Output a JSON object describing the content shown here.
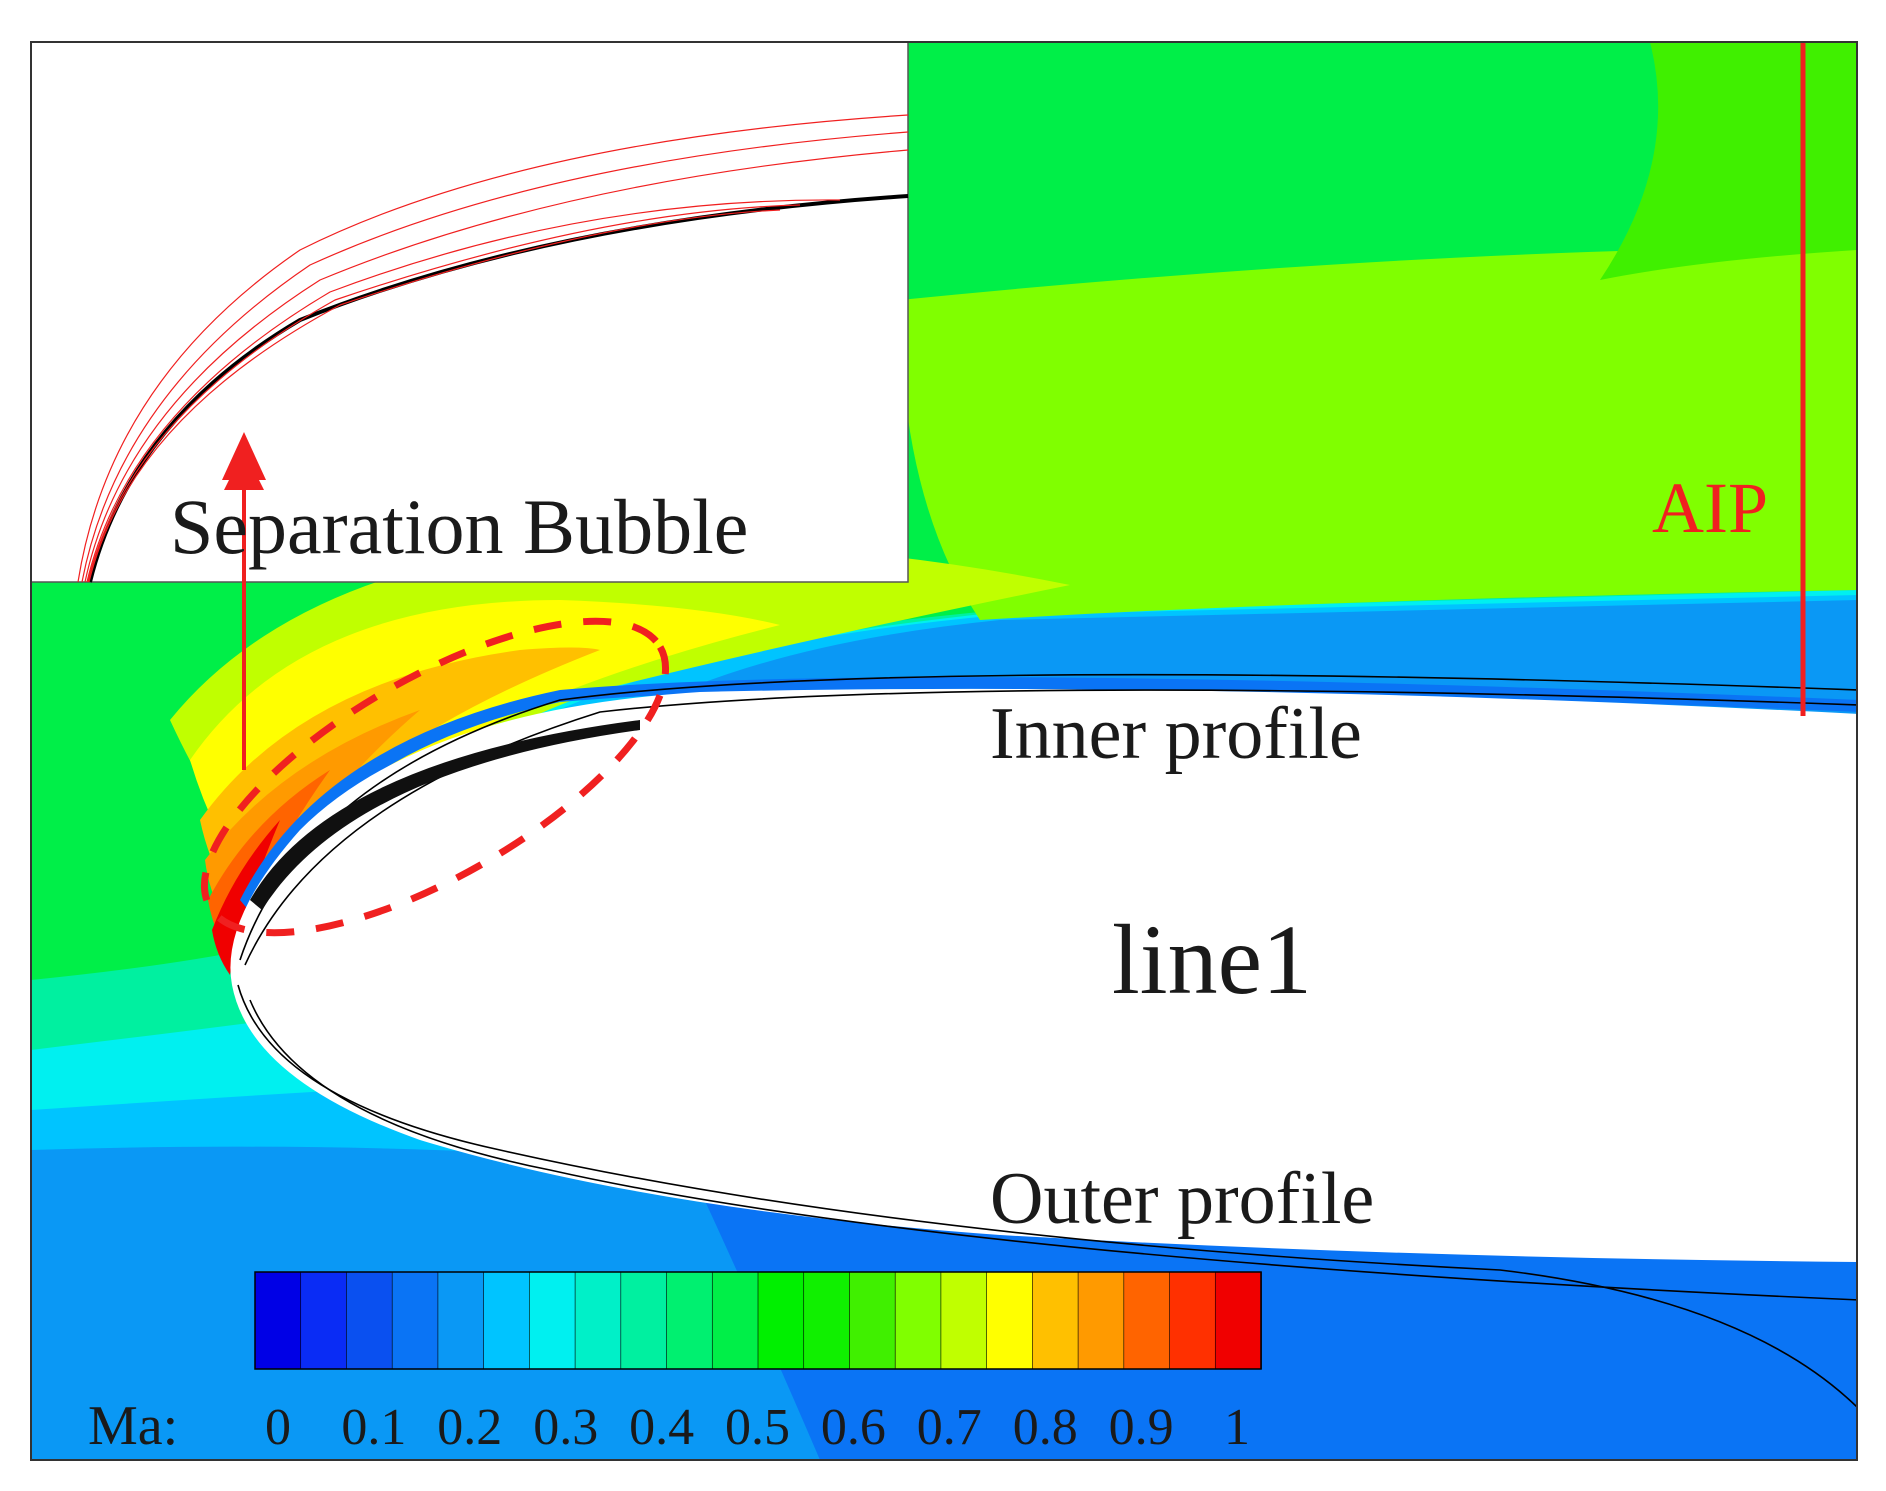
{
  "labels": {
    "separation_bubble": "Separation Bubble",
    "aip": "AIP",
    "inner_profile": "Inner profile",
    "outer_profile": "Outer profile",
    "line1": "line1"
  },
  "colorbar": {
    "title": "Ma:",
    "min": 0,
    "max": 1,
    "tick_labels": [
      "0",
      "0.1",
      "0.2",
      "0.3",
      "0.4",
      "0.5",
      "0.6",
      "0.7",
      "0.8",
      "0.9",
      "1"
    ],
    "colors": [
      "#0000e6",
      "#0a2cf5",
      "#0a50f0",
      "#0a74f5",
      "#0a98f5",
      "#00c4ff",
      "#00f0f0",
      "#00f0c8",
      "#00f0a0",
      "#00f070",
      "#00ef48",
      "#00f000",
      "#10f000",
      "#40f000",
      "#80ff00",
      "#c0ff00",
      "#ffff00",
      "#ffc000",
      "#ff9a00",
      "#ff6400",
      "#ff3000",
      "#f00000"
    ]
  },
  "colors": {
    "annotation_red": "#f02020",
    "profile_black": "#000000",
    "frame": "#333333"
  }
}
